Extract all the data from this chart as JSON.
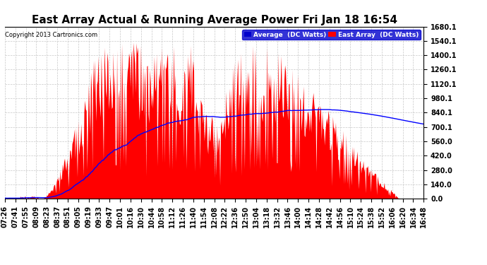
{
  "title": "East Array Actual & Running Average Power Fri Jan 18 16:54",
  "copyright": "Copyright 2013 Cartronics.com",
  "legend_avg": "Average  (DC Watts)",
  "legend_east": "East Array  (DC Watts)",
  "yticks": [
    0.0,
    140.0,
    280.0,
    420.0,
    560.0,
    700.1,
    840.1,
    980.1,
    1120.1,
    1260.1,
    1400.1,
    1540.1,
    1680.1
  ],
  "ymin": 0.0,
  "ymax": 1680.1,
  "bg_color": "#ffffff",
  "grid_color": "#c8c8c8",
  "fill_color": "#ff0000",
  "avg_line_color": "#0000ff",
  "title_fontsize": 11,
  "tick_fontsize": 7,
  "xtick_labels": [
    "07:26",
    "07:41",
    "07:55",
    "08:09",
    "08:23",
    "08:37",
    "08:51",
    "09:05",
    "09:19",
    "09:33",
    "09:47",
    "10:01",
    "10:16",
    "10:30",
    "10:44",
    "10:58",
    "11:12",
    "11:26",
    "11:40",
    "11:54",
    "12:08",
    "12:22",
    "12:36",
    "12:50",
    "13:04",
    "13:18",
    "13:32",
    "13:46",
    "14:00",
    "14:14",
    "14:28",
    "14:42",
    "14:56",
    "15:10",
    "15:24",
    "15:38",
    "15:52",
    "16:06",
    "16:20",
    "16:34",
    "16:48"
  ]
}
